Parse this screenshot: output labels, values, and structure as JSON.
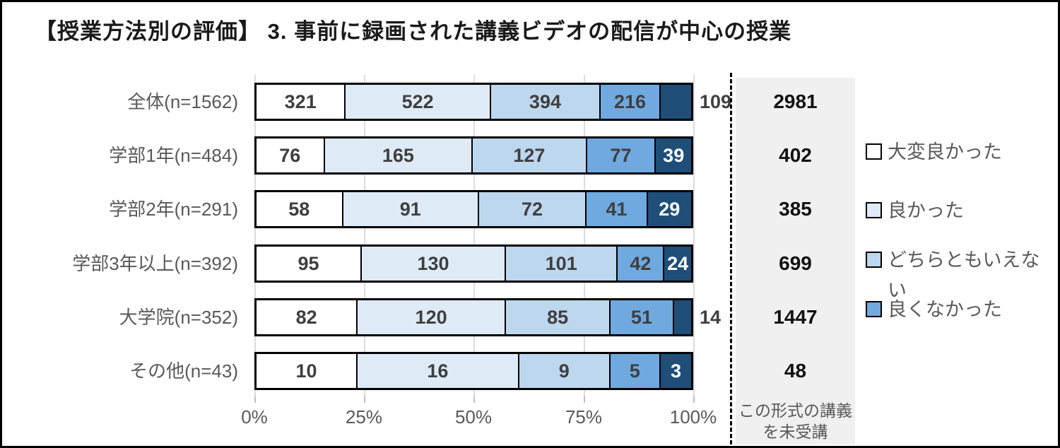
{
  "title": "【授業方法別の評価】 3. 事前に録画された講義ビデオの配信が中心の授業",
  "colors": {
    "segments": [
      "#FFFFFF",
      "#DEEBF7",
      "#BDD7EE",
      "#6FA9E0",
      "#1F4E79"
    ],
    "grid": "#DCDCDC",
    "not_attended_box_bg": "#F0F0F0",
    "value_text": "#3F3F3F",
    "label_text": "#595959"
  },
  "rows": [
    {
      "label": "全体(n=1562)",
      "values": [
        321,
        522,
        394,
        216,
        109
      ],
      "not_attended": 2981
    },
    {
      "label": "学部1年(n=484)",
      "values": [
        76,
        165,
        127,
        77,
        39
      ],
      "not_attended": 402
    },
    {
      "label": "学部2年(n=291)",
      "values": [
        58,
        91,
        72,
        41,
        29
      ],
      "not_attended": 385
    },
    {
      "label": "学部3年以上(n=392)",
      "values": [
        95,
        130,
        101,
        42,
        24
      ],
      "not_attended": 699
    },
    {
      "label": "大学院(n=352)",
      "values": [
        82,
        120,
        85,
        51,
        14
      ],
      "not_attended": 1447
    },
    {
      "label": "その他(n=43)",
      "values": [
        10,
        16,
        9,
        5,
        3
      ],
      "not_attended": 48
    }
  ],
  "legend": [
    {
      "label": "大変良かった",
      "color": "#FFFFFF"
    },
    {
      "label": "良かった",
      "color": "#DEEBF7"
    },
    {
      "label": "どちらともいえない",
      "color": "#BDD7EE"
    },
    {
      "label": "良くなかった",
      "color": "#6FA9E0"
    }
  ],
  "axis": {
    "ticks": [
      "0%",
      "25%",
      "50%",
      "75%",
      "100%"
    ]
  },
  "not_attended_column": {
    "footer_line1": "この形式の講義",
    "footer_line2": "を未受講"
  },
  "chart_data": {
    "type": "bar",
    "stacked": true,
    "orientation": "horizontal",
    "title": "【授業方法別の評価】 3. 事前に録画された講義ビデオの配信が中心の授業",
    "categories": [
      "全体(n=1562)",
      "学部1年(n=484)",
      "学部2年(n=291)",
      "学部3年以上(n=392)",
      "大学院(n=352)",
      "その他(n=43)"
    ],
    "series": [
      {
        "name": "大変良かった",
        "color": "#FFFFFF",
        "values": [
          321,
          76,
          58,
          95,
          82,
          10
        ]
      },
      {
        "name": "良かった",
        "color": "#DEEBF7",
        "values": [
          522,
          165,
          91,
          130,
          120,
          16
        ]
      },
      {
        "name": "どちらともいえない",
        "color": "#BDD7EE",
        "values": [
          394,
          127,
          72,
          101,
          85,
          9
        ]
      },
      {
        "name": "良くなかった",
        "color": "#6FA9E0",
        "values": [
          216,
          77,
          41,
          42,
          51,
          5
        ]
      },
      {
        "name": "",
        "color": "#1F4E79",
        "values": [
          109,
          39,
          29,
          24,
          14,
          3
        ]
      }
    ],
    "x_axis": {
      "ticks": [
        "0%",
        "25%",
        "50%",
        "75%",
        "100%"
      ],
      "range_percent": [
        0,
        100
      ]
    },
    "annotation_column": {
      "label": "この形式の講義を未受講",
      "values": [
        2981,
        402,
        385,
        699,
        1447,
        48
      ]
    },
    "legend_position": "right",
    "grid": true
  }
}
